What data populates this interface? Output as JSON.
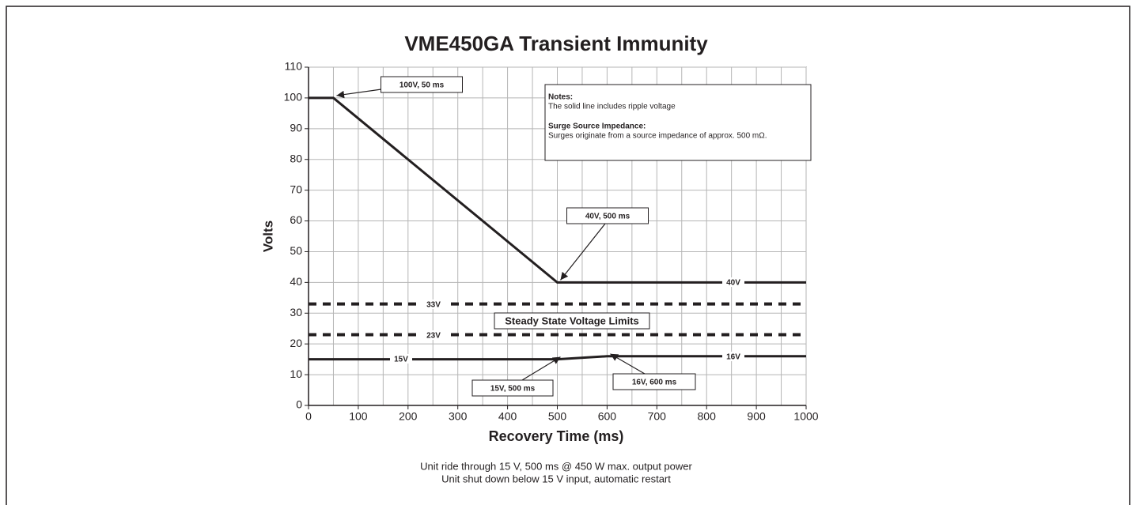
{
  "chart_data": {
    "type": "line",
    "title": "VME450GA Transient Immunity",
    "x_label": "Recovery Time (ms)",
    "y_label": "Volts",
    "xlim": [
      0,
      1000
    ],
    "ylim": [
      0,
      110
    ],
    "xticks": [
      0,
      100,
      200,
      300,
      400,
      500,
      600,
      700,
      800,
      900,
      1000
    ],
    "minor_xticks": [
      50,
      150,
      250,
      350,
      450,
      550,
      650,
      750,
      850,
      950
    ],
    "yticks": [
      0,
      10,
      20,
      30,
      40,
      50,
      60,
      70,
      80,
      90,
      100,
      110
    ],
    "grid": true,
    "series": [
      {
        "color": "#231f20",
        "style": "solid",
        "x": [
          0,
          50,
          500,
          1000
        ],
        "values": [
          100,
          100,
          40,
          40
        ]
      },
      {
        "color": "#231f20",
        "style": "solid",
        "x": [
          0,
          500,
          600,
          1000
        ],
        "values": [
          15,
          15,
          16,
          16
        ]
      },
      {
        "color": "#231f20",
        "style": "dashed",
        "x": [
          0,
          1000
        ],
        "values": [
          33,
          33
        ]
      },
      {
        "color": "#231f20",
        "style": "dashed",
        "x": [
          0,
          1000
        ],
        "values": [
          23,
          23
        ]
      }
    ],
    "annotations": [
      "100V, 50 ms",
      "40V, 500 ms",
      "15V, 500 ms",
      "16V, 600 ms",
      "Steady State Voltage Limits",
      "40V",
      "33V",
      "23V",
      "15V",
      "16V"
    ],
    "notes": [
      "Notes:",
      "The solid line includes ripple voltage",
      "Surge Source Impedance:",
      "Surges originate from a source impedance of approx. 500 mΩ."
    ],
    "caption": [
      "Unit ride through 15 V, 500 ms @ 450 W max. output power",
      "Unit shut down below 15 V input, automatic restart"
    ]
  }
}
